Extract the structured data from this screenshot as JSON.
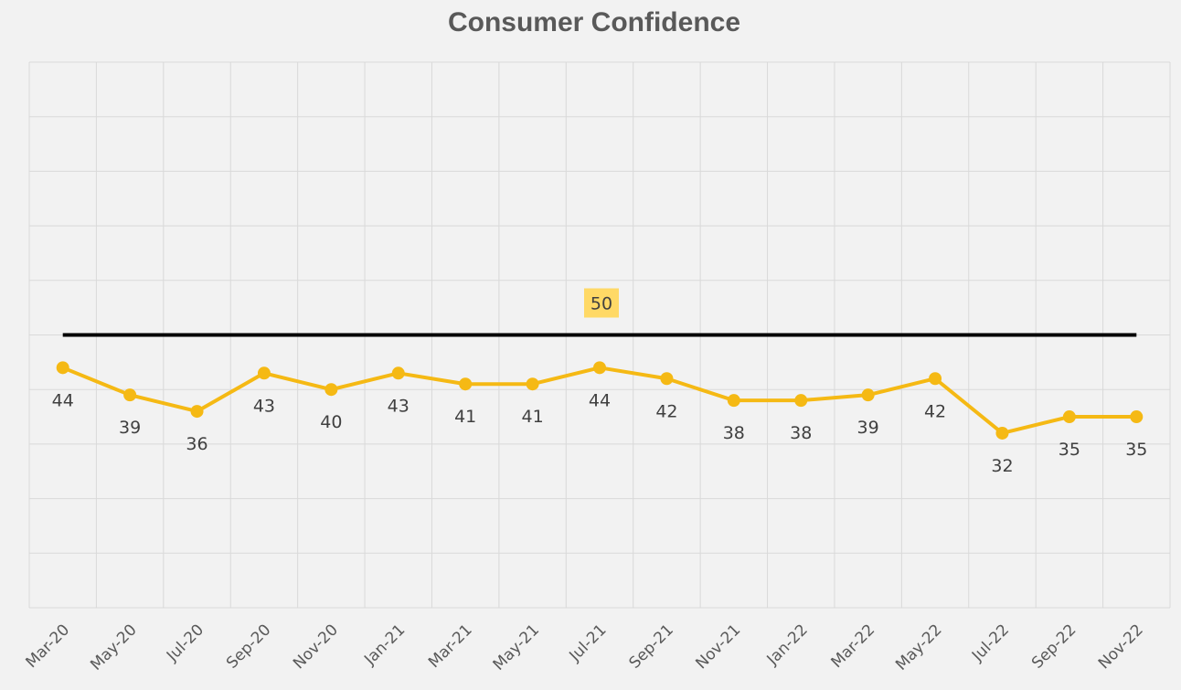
{
  "chart_data": {
    "type": "line",
    "title": "Consumer Confidence",
    "xlabel": "",
    "ylabel": "",
    "categories": [
      "Mar-20",
      "May-20",
      "Jul-20",
      "Sep-20",
      "Nov-20",
      "Jan-21",
      "Mar-21",
      "May-21",
      "Jul-21",
      "Sep-21",
      "Nov-21",
      "Jan-22",
      "Mar-22",
      "May-22",
      "Jul-22",
      "Sep-22",
      "Nov-22"
    ],
    "series": [
      {
        "values": [
          44,
          39,
          36,
          43,
          40,
          43,
          41,
          41,
          44,
          42,
          38,
          38,
          39,
          42,
          32,
          35,
          35
        ],
        "color": "#f5b914"
      },
      {
        "values": [
          50,
          50,
          50,
          50,
          50,
          50,
          50,
          50,
          50,
          50,
          50,
          50,
          50,
          50,
          50,
          50,
          50
        ],
        "color": "#000000",
        "label": "50"
      }
    ],
    "ylim": [
      0,
      100
    ],
    "grid": true,
    "legend": "none"
  },
  "colors": {
    "background": "#f2f2f2",
    "series_line": "#f5b914",
    "reference_line": "#000000",
    "reference_label_bg": "#ffd966"
  }
}
